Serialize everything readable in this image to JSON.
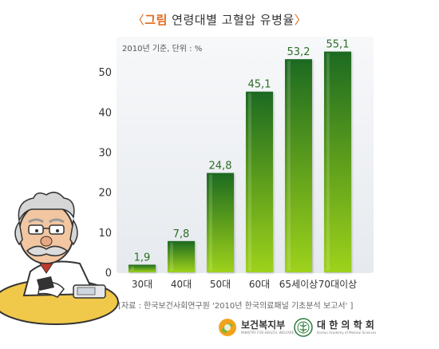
{
  "title": {
    "open_bracket": "〈",
    "accent": "그림",
    "text": "연령대별 고혈압 유병율",
    "close_bracket": "〉"
  },
  "chart_data": {
    "type": "bar",
    "note": "2010년 기준, 단위 : %",
    "categories": [
      "30대",
      "40대",
      "50대",
      "60대",
      "65세이상",
      "70대이상"
    ],
    "values": [
      1.9,
      7.8,
      24.8,
      45.1,
      53.2,
      55.1
    ],
    "value_labels": [
      "1,9",
      "7,8",
      "24,8",
      "45,1",
      "53,2",
      "55,1"
    ],
    "ylim": [
      0,
      60
    ],
    "yticks": [
      0,
      10,
      20,
      30,
      40,
      50
    ],
    "xlabel": "",
    "ylabel": "",
    "grid": false,
    "colors": {
      "bar_top": "#1d6a20",
      "bar_bottom": "#9ed21e",
      "label": "#2d6e24",
      "panel": "#eef1f4"
    }
  },
  "source": "[자료 : 한국보건사회연구원 '2010년 한국의료패널 기초분석 보고서' ]",
  "logos": [
    {
      "name": "보건복지부",
      "sub": "MINISTRY FOR HEALTH, WELFARE AFFAIRS",
      "icon": "ministry-logo-icon"
    },
    {
      "name": "대 한 의 학 회",
      "sub": "Korean Academy of Medical Sciences",
      "icon": "academy-seal-icon"
    }
  ],
  "illustration": {
    "icon": "doctor-mascot-icon"
  }
}
